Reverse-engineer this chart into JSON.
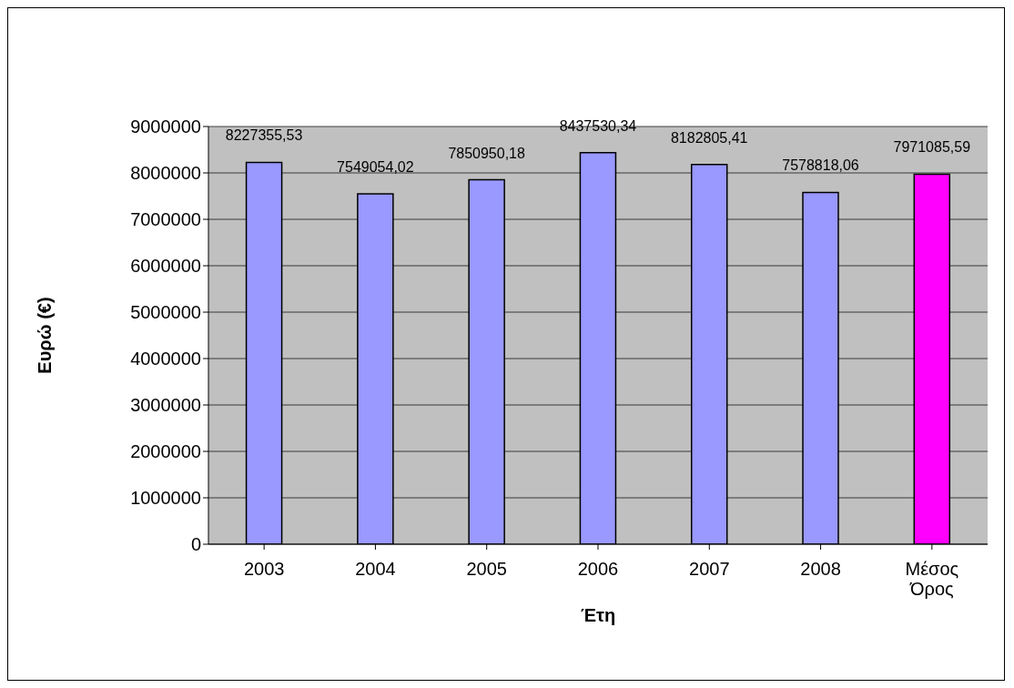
{
  "chart_data": {
    "type": "bar",
    "xlabel": "Έτη",
    "ylabel": "Ευρώ (€)",
    "categories": [
      "2003",
      "2004",
      "2005",
      "2006",
      "2007",
      "2008",
      "Μέσος Όρος"
    ],
    "values": [
      8227355.53,
      7549054.02,
      7850950.18,
      8437530.34,
      8182805.41,
      7578818.06,
      7971085.59
    ],
    "colors": [
      "#9999ff",
      "#9999ff",
      "#9999ff",
      "#9999ff",
      "#9999ff",
      "#9999ff",
      "#ff00ff"
    ],
    "value_labels": [
      "8227355,53",
      "7549054,02",
      "7850950,18",
      "8437530,34",
      "8182805,41",
      "7578818,06",
      "7971085,59"
    ],
    "ylim": [
      0,
      9000000
    ],
    "yticks": [
      0,
      1000000,
      2000000,
      3000000,
      4000000,
      5000000,
      6000000,
      7000000,
      8000000,
      9000000
    ],
    "grid": "y"
  }
}
